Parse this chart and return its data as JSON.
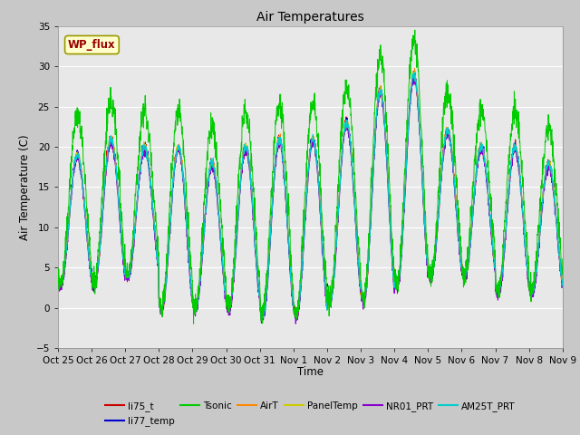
{
  "title": "Air Temperatures",
  "ylabel": "Air Temperature (C)",
  "xlabel": "Time",
  "ylim": [
    -5,
    35
  ],
  "yticks": [
    -5,
    0,
    5,
    10,
    15,
    20,
    25,
    30,
    35
  ],
  "x_labels": [
    "Oct 25",
    "Oct 26",
    "Oct 27",
    "Oct 28",
    "Oct 29",
    "Oct 30",
    "Oct 31",
    "Nov 1",
    "Nov 2",
    "Nov 3",
    "Nov 4",
    "Nov 5",
    "Nov 6",
    "Nov 7",
    "Nov 8",
    "Nov 9"
  ],
  "bg_color": "#e8e8e8",
  "fig_bg_color": "#c8c8c8",
  "legend_entries": [
    "li75_t",
    "li77_temp",
    "Tsonic",
    "AirT",
    "PanelTemp",
    "NR01_PRT",
    "AM25T_PRT"
  ],
  "legend_colors": [
    "#cc0000",
    "#0000cc",
    "#00cc00",
    "#ff8800",
    "#cccc00",
    "#8800cc",
    "#00cccc"
  ],
  "wp_flux_bg": "#ffffcc",
  "wp_flux_text_color": "#990000",
  "wp_flux_border_color": "#999900",
  "n_days": 15,
  "pts_per_day": 144,
  "day_means": [
    11,
    12,
    12,
    10,
    9,
    10,
    10,
    10,
    12,
    14,
    16,
    13,
    12,
    11,
    10
  ],
  "day_amps": [
    8,
    9,
    8,
    10,
    9,
    10,
    11,
    11,
    11,
    13,
    13,
    9,
    8,
    9,
    8
  ]
}
